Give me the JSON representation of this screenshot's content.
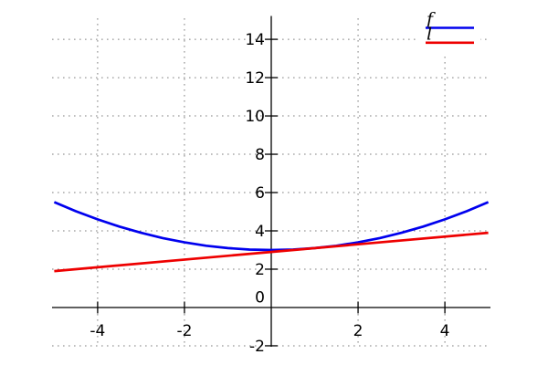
{
  "chart_data": {
    "type": "line",
    "title": "",
    "xlabel": "",
    "ylabel": "",
    "xlim": [
      -5.05,
      5.05
    ],
    "ylim": [
      -2.05,
      15.1
    ],
    "grid": true,
    "background_color": "#ffffff",
    "axis_color": "#000000",
    "grid_color": "#7f7f7f",
    "axes_through_origin": true,
    "x_ticks": {
      "values": [
        -4,
        -2,
        2,
        4
      ],
      "labels": [
        "-4",
        "-2",
        "2",
        "4"
      ]
    },
    "y_ticks": {
      "values": [
        -2,
        0,
        2,
        4,
        6,
        8,
        10,
        12,
        14
      ],
      "labels": [
        "-2",
        "0",
        "2",
        "4",
        "6",
        "8",
        "10",
        "12",
        "14"
      ]
    },
    "legend": {
      "position": "top-right",
      "entries": [
        {
          "label": "f",
          "color": "#0000ee"
        },
        {
          "label": "l",
          "color": "#ee0000"
        }
      ]
    },
    "series": [
      {
        "name": "f",
        "color": "#0000ee",
        "x": [
          -5,
          -4.5,
          -4,
          -3.5,
          -3,
          -2.5,
          -2,
          -1.5,
          -1,
          -0.5,
          0,
          0.5,
          1,
          1.5,
          2,
          2.5,
          3,
          3.5,
          4,
          4.5,
          5
        ],
        "y": [
          5.5,
          5.025,
          4.6,
          4.225,
          3.9,
          3.625,
          3.4,
          3.225,
          3.1,
          3.025,
          3.0,
          3.025,
          3.1,
          3.225,
          3.4,
          3.625,
          3.9,
          4.225,
          4.6,
          5.025,
          5.5
        ]
      },
      {
        "name": "l",
        "color": "#ee0000",
        "x": [
          -5,
          0,
          5
        ],
        "y": [
          1.9,
          2.9,
          3.9
        ]
      }
    ]
  }
}
